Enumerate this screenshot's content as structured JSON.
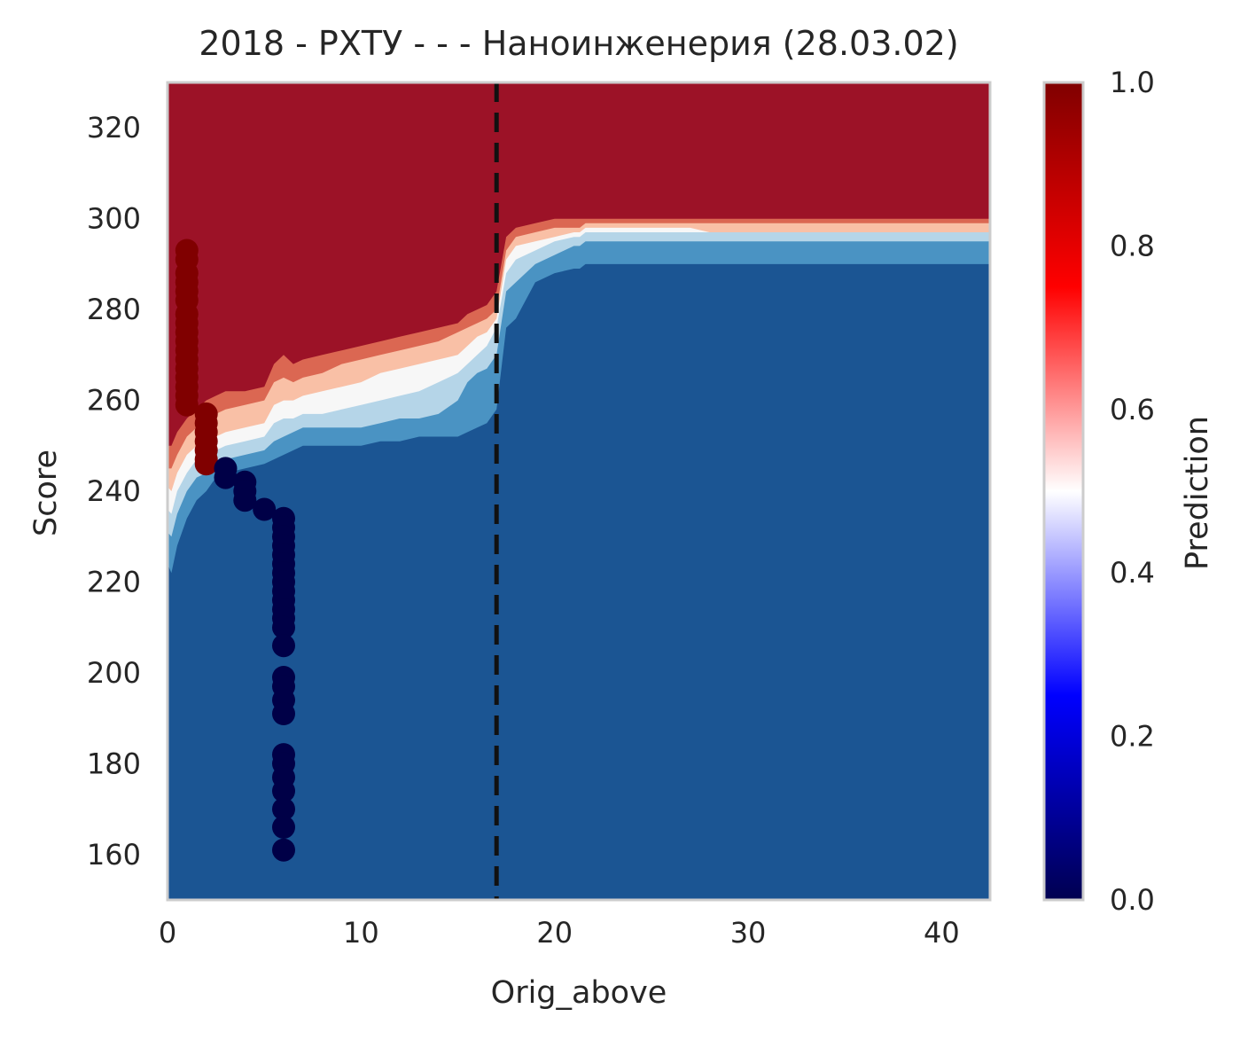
{
  "chart_data": {
    "type": "heatmap",
    "title": "2018 - РХТУ - - - Наноинженерия (28.03.02)",
    "xlabel": "Orig_above",
    "ylabel": "Score",
    "xlim": [
      0,
      42.5
    ],
    "ylim": [
      150,
      330
    ],
    "xticks": [
      "0",
      "10",
      "20",
      "30",
      "40"
    ],
    "yticks": [
      "160",
      "180",
      "200",
      "220",
      "240",
      "260",
      "280",
      "300",
      "320"
    ],
    "grid": false,
    "colorbar": {
      "label": "Prediction",
      "range": [
        0.0,
        1.0
      ],
      "ticks": [
        "0.0",
        "0.2",
        "0.4",
        "0.6",
        "0.8",
        "1.0"
      ],
      "colors": [
        "#000050",
        "#0000ff",
        "#ffffff",
        "#ff0000",
        "#800000"
      ]
    },
    "threshold_line": {
      "x": 17,
      "style": "dashed",
      "color": "#111111"
    },
    "contour_colors": [
      "#1b5593",
      "#4a93c3",
      "#b5d5e8",
      "#f7f7f7",
      "#f9c0a6",
      "#db6752",
      "#9c1227"
    ],
    "contour_boundaries": {
      "x": [
        0,
        0.2,
        0.5,
        1,
        1.5,
        2,
        2.5,
        3,
        4,
        5,
        5.5,
        6,
        6.5,
        7,
        8,
        9,
        10,
        11,
        12,
        13,
        14,
        15,
        15.5,
        16,
        16.5,
        17,
        17.5,
        18,
        19,
        20,
        21,
        21.3,
        21.6,
        22,
        25,
        27,
        28,
        35,
        42.5
      ],
      "b1": [
        224,
        222,
        228,
        234,
        238,
        240,
        243,
        244,
        245,
        246,
        247,
        248,
        249,
        250,
        250,
        250,
        250,
        251,
        251,
        252,
        252,
        252,
        253,
        254,
        255,
        258,
        276,
        278,
        286,
        288,
        289,
        289,
        290,
        290,
        290,
        290,
        290,
        290,
        290
      ],
      "b2": [
        231,
        230,
        235,
        240,
        243,
        244,
        246,
        247,
        248,
        249,
        251,
        252,
        253,
        254,
        254,
        254,
        254,
        255,
        256,
        256,
        257,
        260,
        264,
        266,
        267,
        270,
        284,
        286,
        290,
        292,
        294,
        294,
        295,
        295,
        295,
        295,
        295,
        295,
        295
      ],
      "b3": [
        236,
        235,
        240,
        244,
        247,
        248,
        249,
        250,
        251,
        252,
        255,
        256,
        256,
        257,
        257,
        258,
        259,
        260,
        261,
        262,
        264,
        266,
        268,
        270,
        272,
        276,
        288,
        291,
        293,
        295,
        296,
        296,
        297,
        297,
        297,
        297,
        297,
        297,
        297
      ],
      "b4": [
        241,
        240,
        244,
        248,
        250,
        251,
        252,
        253,
        254,
        255,
        259,
        260,
        260,
        261,
        262,
        263,
        264,
        266,
        267,
        268,
        269,
        270,
        272,
        274,
        275,
        278,
        291,
        294,
        295,
        296,
        297,
        297,
        298,
        298,
        298,
        298,
        297,
        297,
        297
      ],
      "b5": [
        245,
        245,
        248,
        252,
        254,
        256,
        257,
        258,
        259,
        260,
        264,
        265,
        264,
        265,
        266,
        268,
        269,
        270,
        271,
        272,
        273,
        275,
        276,
        277,
        278,
        280,
        293,
        296,
        297,
        298,
        298,
        298,
        299,
        299,
        299,
        299,
        299,
        299,
        299
      ],
      "b6": [
        250,
        250,
        253,
        256,
        258,
        260,
        261,
        262,
        262,
        263,
        268,
        270,
        268,
        269,
        270,
        271,
        272,
        273,
        274,
        275,
        276,
        277,
        279,
        280,
        281,
        284,
        296,
        298,
        299,
        300,
        300,
        300,
        300,
        300,
        300,
        300,
        300,
        300,
        300
      ]
    },
    "series": [
      {
        "name": "",
        "class": "1",
        "color": "#800000",
        "points": [
          [
            1,
            293
          ],
          [
            1,
            291
          ],
          [
            1,
            288
          ],
          [
            1,
            286
          ],
          [
            1,
            284
          ],
          [
            1,
            282
          ],
          [
            1,
            279
          ],
          [
            1,
            277
          ],
          [
            1,
            275
          ],
          [
            1,
            273
          ],
          [
            1,
            271
          ],
          [
            1,
            269
          ],
          [
            1,
            267
          ],
          [
            1,
            265
          ],
          [
            1,
            263
          ],
          [
            1,
            261
          ],
          [
            1,
            259
          ],
          [
            2,
            257
          ],
          [
            2,
            255
          ],
          [
            2,
            253
          ],
          [
            2,
            251
          ],
          [
            2,
            249
          ],
          [
            2,
            247
          ],
          [
            2,
            246
          ]
        ]
      },
      {
        "name": "",
        "class": "0",
        "color": "#000047",
        "points": [
          [
            3,
            245
          ],
          [
            3,
            243
          ],
          [
            4,
            242
          ],
          [
            4,
            240
          ],
          [
            4,
            238
          ],
          [
            5,
            236
          ],
          [
            6,
            234
          ],
          [
            6,
            232
          ],
          [
            6,
            230
          ],
          [
            6,
            228
          ],
          [
            6,
            226
          ],
          [
            6,
            224
          ],
          [
            6,
            222
          ],
          [
            6,
            220
          ],
          [
            6,
            218
          ],
          [
            6,
            216
          ],
          [
            6,
            214
          ],
          [
            6,
            212
          ],
          [
            6,
            210
          ],
          [
            6,
            206
          ],
          [
            6,
            199
          ],
          [
            6,
            197
          ],
          [
            6,
            194
          ],
          [
            6,
            191
          ],
          [
            6,
            182
          ],
          [
            6,
            180
          ],
          [
            6,
            177
          ],
          [
            6,
            174
          ],
          [
            6,
            170
          ],
          [
            6,
            166
          ],
          [
            6,
            161
          ]
        ]
      }
    ]
  }
}
